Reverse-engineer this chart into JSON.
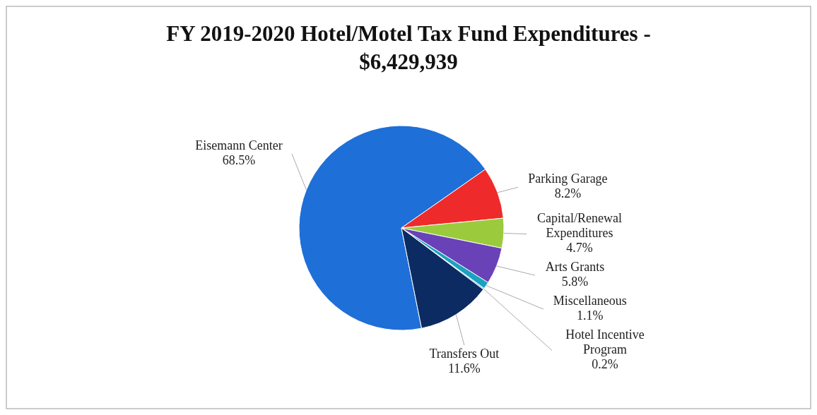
{
  "chart_data": {
    "type": "pie",
    "title": "FY 2019-2020 Hotel/Motel Tax Fund Expenditures - $6,429,939",
    "categories": [
      "Eisemann Center",
      "Parking Garage",
      "Capital/Renewal Expenditures",
      "Arts Grants",
      "Miscellaneous",
      "Hotel Incentive Program",
      "Transfers Out"
    ],
    "values": [
      68.5,
      8.2,
      4.7,
      5.8,
      1.1,
      0.2,
      11.6
    ],
    "value_labels": [
      "68.5%",
      "8.2%",
      "4.7%",
      "5.8%",
      "1.1%",
      "0.2%",
      "11.6%"
    ],
    "colors": [
      "#1e6fd8",
      "#ee2a2a",
      "#9bcb3c",
      "#6a42b8",
      "#1aa2be",
      "#86b8e6",
      "#0c2b62"
    ]
  }
}
